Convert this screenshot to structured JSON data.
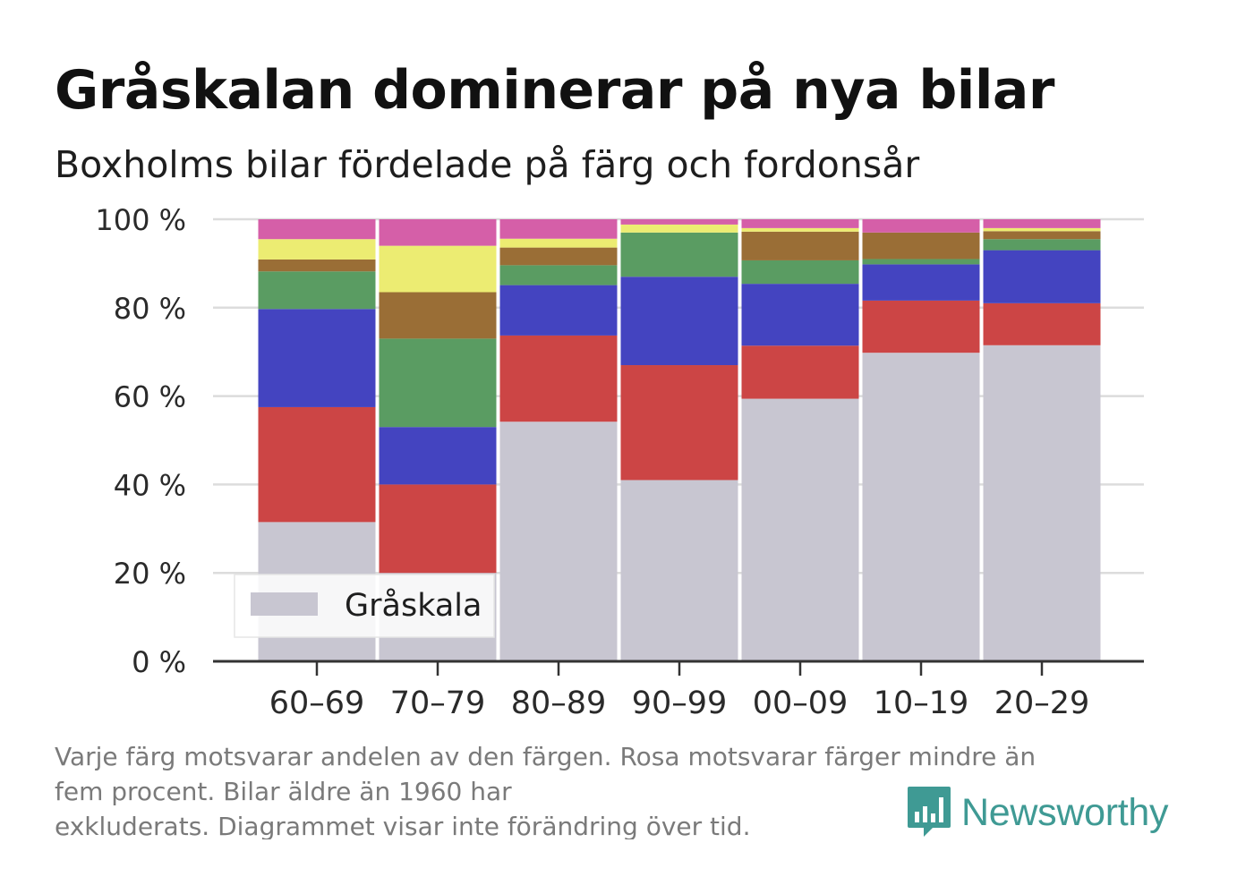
{
  "title": "Gråskalan dominerar på nya bilar",
  "subtitle": "Boxholms bilar fördelade på färg och fordonsår",
  "footnote": {
    "line1": "Varje färg motsvarar andelen av den färgen. Rosa motsvarar färger mindre än",
    "line2": "fem procent. Bilar äldre än 1960 har",
    "line3": "exkluderats. Diagrammet visar inte förändring över tid."
  },
  "brand": {
    "name": "Newsworthy",
    "icon": "bar-chart-bubble-icon"
  },
  "chart_data": {
    "type": "bar",
    "stacked": true,
    "categories": [
      "60–69",
      "70–79",
      "80–89",
      "90–99",
      "00–09",
      "10–19",
      "20–29"
    ],
    "y_ticks": [
      "0 %",
      "20 %",
      "40 %",
      "60 %",
      "80 %",
      "100 %"
    ],
    "ylim": [
      0,
      100
    ],
    "grid": true,
    "legend": {
      "position": "bottom-left",
      "entries": [
        "Gråskala"
      ]
    },
    "series": [
      {
        "name": "Gråskala",
        "color": "#c8c6d1",
        "values": [
          31.5,
          20,
          54.2,
          41,
          59.4,
          69.8,
          71.5
        ]
      },
      {
        "color": "#cc4545",
        "values": [
          26,
          20,
          19.5,
          26,
          12,
          11.8,
          9.5
        ]
      },
      {
        "color": "#4444c0",
        "values": [
          22.2,
          13,
          11.4,
          20,
          14,
          8.2,
          12
        ]
      },
      {
        "color": "#5a9c62",
        "values": [
          8.5,
          20,
          4.5,
          10,
          5.3,
          1.2,
          2.5
        ]
      },
      {
        "color": "#9a6e36",
        "values": [
          2.7,
          10.5,
          4,
          0,
          6.5,
          6,
          1.8
        ]
      },
      {
        "color": "#ecec72",
        "values": [
          4.6,
          10.5,
          2,
          1.8,
          0.8,
          0,
          0.7
        ]
      },
      {
        "color": "#d55fa8",
        "values": [
          4.5,
          6,
          4.4,
          1.2,
          2,
          3,
          2
        ]
      }
    ]
  }
}
